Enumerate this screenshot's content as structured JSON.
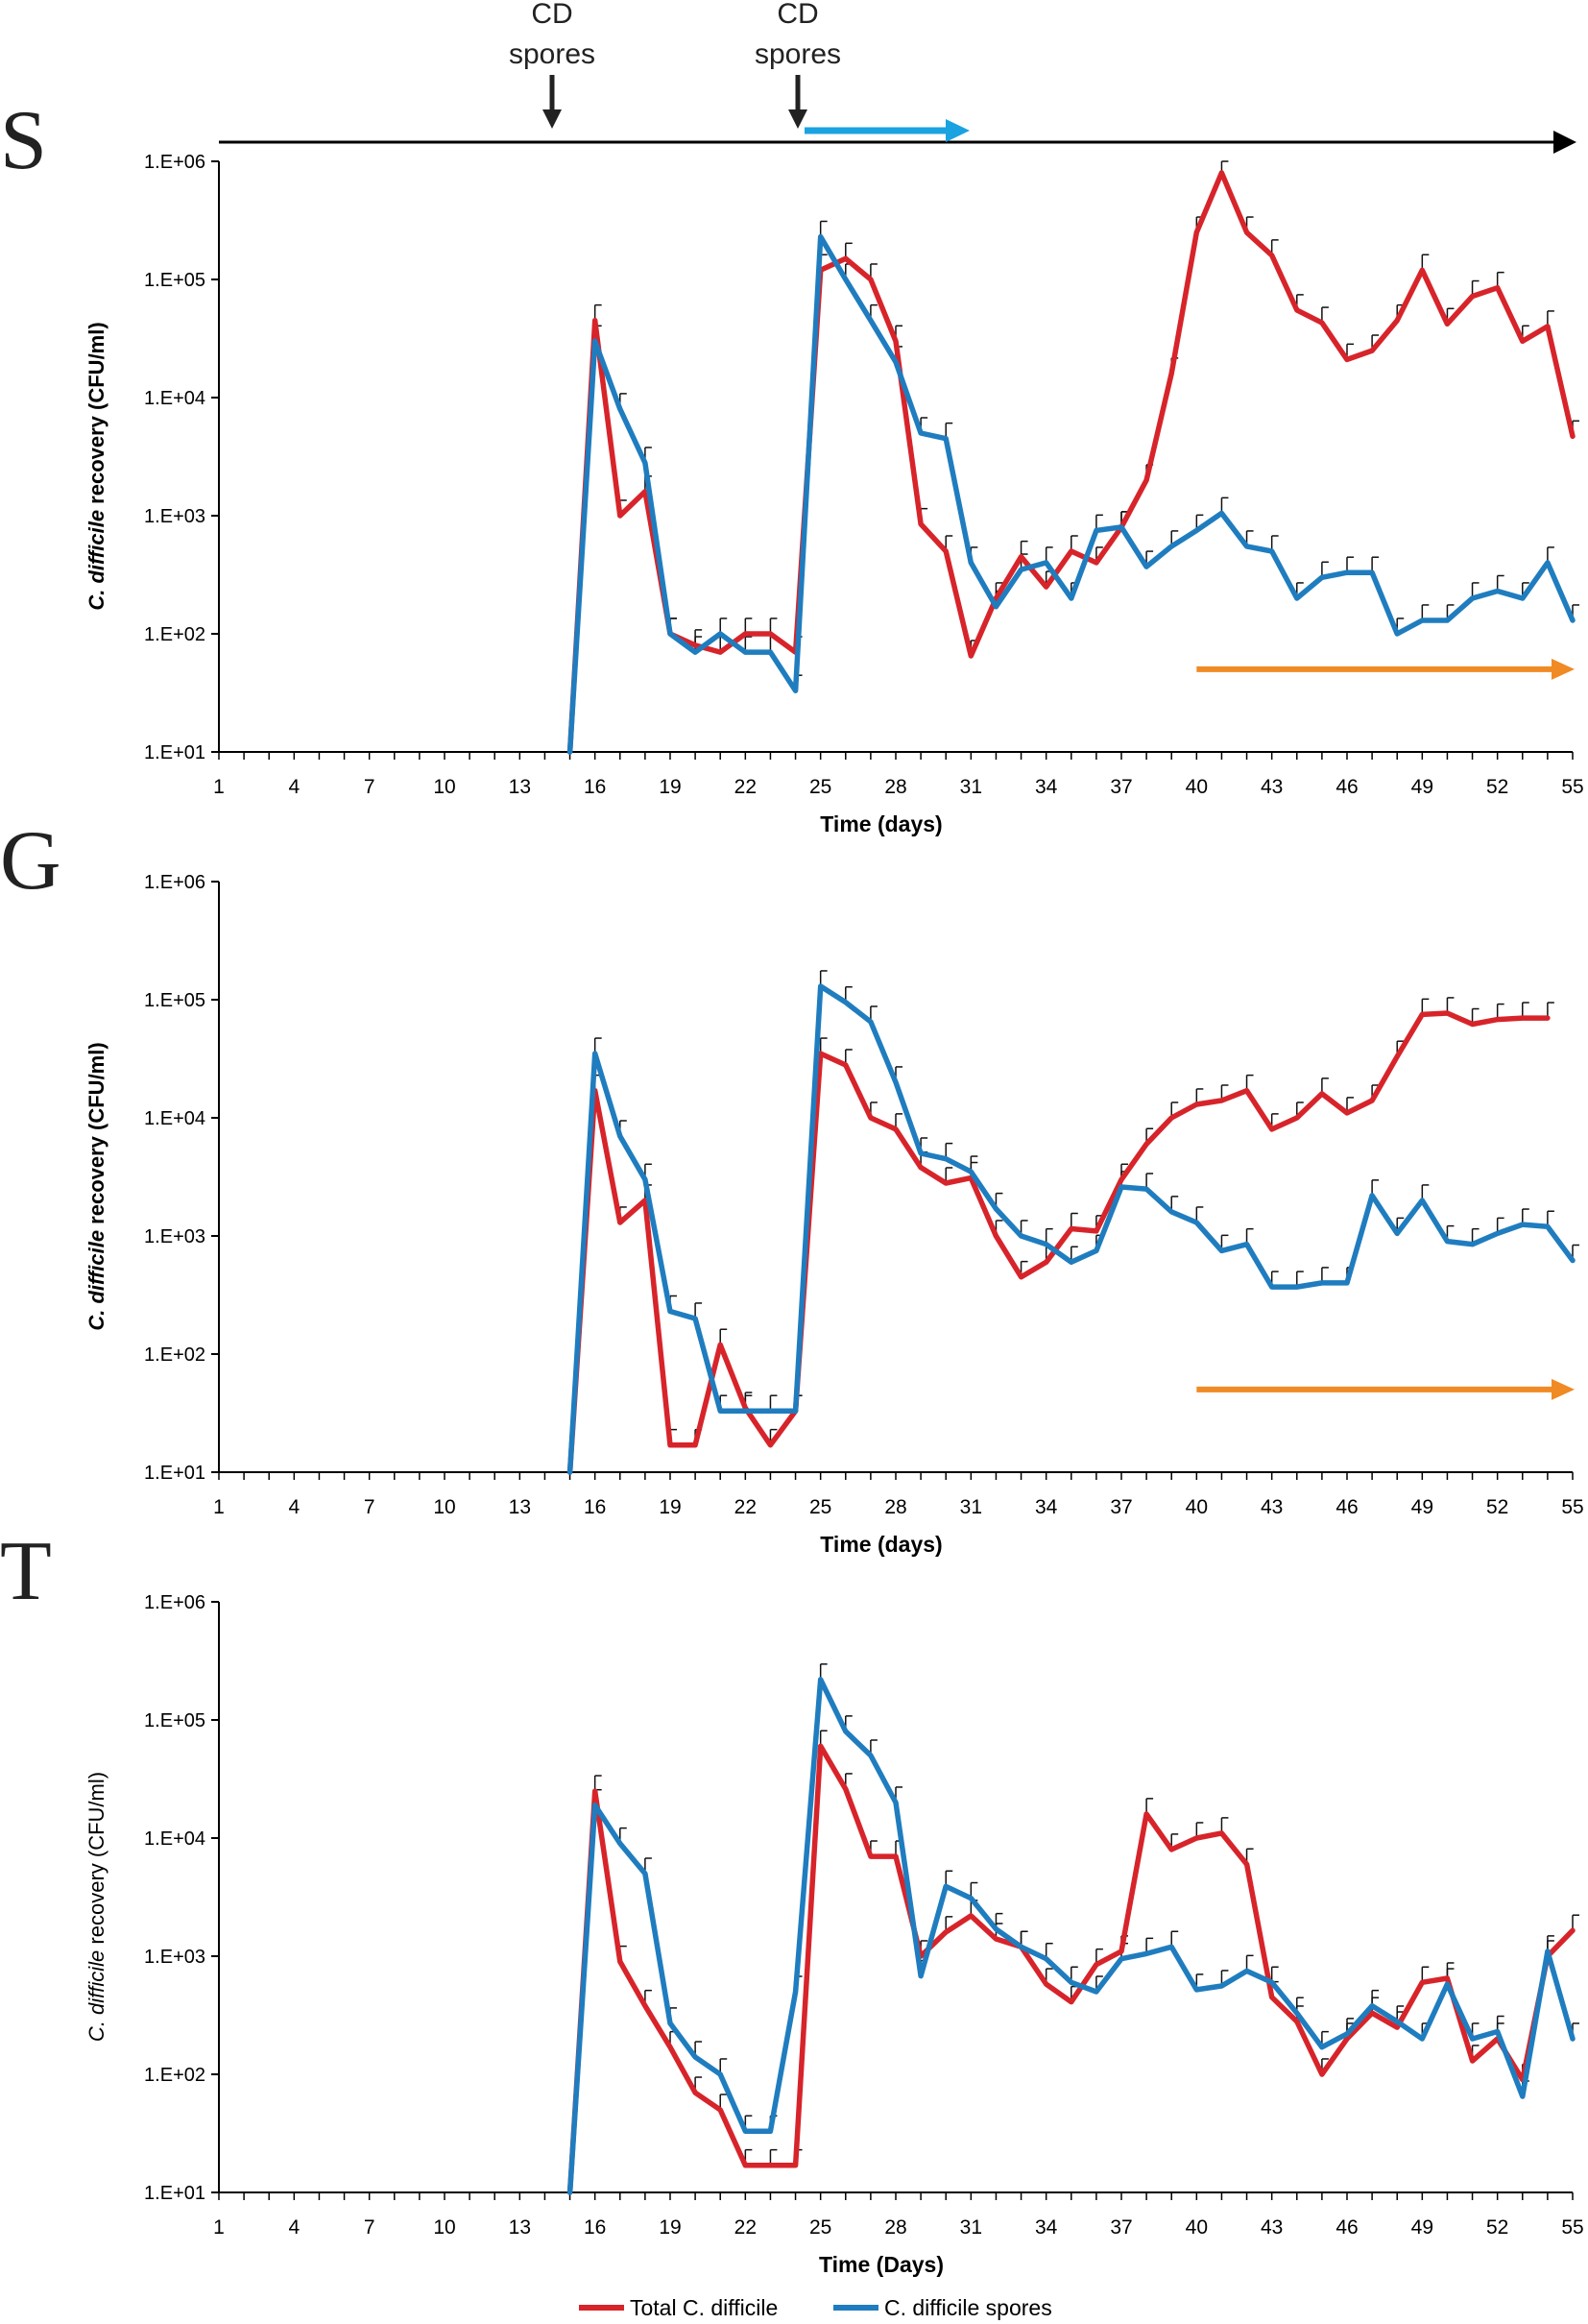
{
  "figure": {
    "colors": {
      "total": "#d7242a",
      "spores": "#1f7dbf",
      "timeline": "#000000",
      "spore_arrow": "#1aa3e0",
      "treatment_arrow": "#f08a24",
      "marker": "#222222"
    },
    "timeline": {
      "markers": [
        {
          "line1": "CD",
          "line2": "spores",
          "day": 15
        },
        {
          "line1": "CD",
          "line2": "spores",
          "day": 24
        }
      ],
      "spore_arrow_days": [
        24,
        31
      ]
    },
    "legend": [
      {
        "label": "Total C. difficile",
        "color": "#d7242a"
      },
      {
        "label": "C. difficile spores",
        "color": "#1f7dbf"
      }
    ]
  },
  "chart_data": [
    {
      "panel": "S",
      "type": "line",
      "y_scale": "log",
      "ylim": [
        10,
        1000000
      ],
      "xlim": [
        1,
        55
      ],
      "ytick_labels": [
        "1.E+01",
        "1.E+02",
        "1.E+03",
        "1.E+04",
        "1.E+05",
        "1.E+06"
      ],
      "xtick_labels": [
        "1",
        "4",
        "7",
        "10",
        "13",
        "16",
        "19",
        "22",
        "25",
        "28",
        "31",
        "34",
        "37",
        "40",
        "43",
        "46",
        "49",
        "52",
        "55"
      ],
      "xlabel": "Time (days)",
      "ylabel_italic": "C. difficile",
      "ylabel_rest": " recovery (CFU/ml)",
      "ylabel_bold": true,
      "treatment_arrow_days": [
        40,
        55
      ],
      "series": [
        {
          "name": "Total C. difficile",
          "x": [
            15,
            16,
            17,
            18,
            19,
            20,
            21,
            22,
            23,
            24,
            25,
            26,
            27,
            28,
            29,
            30,
            31,
            32,
            33,
            34,
            35,
            36,
            37,
            38,
            39,
            40,
            41,
            42,
            43,
            44,
            45,
            46,
            47,
            48,
            49,
            50,
            51,
            52,
            53,
            54,
            55
          ],
          "values": [
            10,
            45000,
            1000,
            1600,
            100,
            80,
            70,
            100,
            100,
            70,
            120000,
            150000,
            100000,
            30000,
            850,
            500,
            65,
            200,
            450,
            250,
            500,
            400,
            800,
            2000,
            16000,
            250000,
            800000,
            250000,
            160000,
            55000,
            43000,
            21000,
            25000,
            45000,
            120000,
            42000,
            72000,
            85000,
            30000,
            40000,
            4700
          ]
        },
        {
          "name": "C. difficile spores",
          "x": [
            15,
            16,
            17,
            18,
            19,
            20,
            21,
            22,
            23,
            24,
            25,
            26,
            27,
            28,
            29,
            30,
            31,
            32,
            33,
            34,
            35,
            36,
            37,
            38,
            39,
            40,
            41,
            42,
            43,
            44,
            45,
            46,
            47,
            48,
            49,
            50,
            51,
            52,
            53,
            54,
            55
          ],
          "values": [
            10,
            30000,
            8000,
            2800,
            100,
            70,
            100,
            70,
            70,
            33,
            230000,
            100000,
            45000,
            20000,
            5000,
            4500,
            400,
            170,
            350,
            400,
            200,
            750,
            800,
            370,
            550,
            750,
            1050,
            550,
            500,
            200,
            300,
            330,
            330,
            100,
            130,
            130,
            200,
            230,
            200,
            400,
            130
          ]
        }
      ]
    },
    {
      "panel": "G",
      "type": "line",
      "y_scale": "log",
      "ylim": [
        10,
        1000000
      ],
      "xlim": [
        1,
        55
      ],
      "ytick_labels": [
        "1.E+01",
        "1.E+02",
        "1.E+03",
        "1.E+04",
        "1.E+05",
        "1.E+06"
      ],
      "xtick_labels": [
        "1",
        "4",
        "7",
        "10",
        "13",
        "16",
        "19",
        "22",
        "25",
        "28",
        "31",
        "34",
        "37",
        "40",
        "43",
        "46",
        "49",
        "52",
        "55"
      ],
      "xlabel": "Time (days)",
      "ylabel_italic": "C. difficile",
      "ylabel_rest": " recovery (CFU/ml)",
      "ylabel_bold": true,
      "treatment_arrow_days": [
        40,
        55
      ],
      "series": [
        {
          "name": "Total C. difficile",
          "x": [
            15,
            16,
            17,
            18,
            19,
            20,
            21,
            22,
            23,
            24,
            25,
            26,
            27,
            28,
            29,
            30,
            31,
            32,
            33,
            34,
            35,
            36,
            37,
            38,
            39,
            40,
            41,
            42,
            43,
            44,
            45,
            46,
            47,
            48,
            49,
            50,
            51,
            52,
            53,
            54
          ],
          "values": [
            10,
            17000,
            1300,
            2000,
            17,
            17,
            120,
            35,
            17,
            33,
            35000,
            28000,
            10000,
            8000,
            3800,
            2800,
            3100,
            1000,
            450,
            600,
            1150,
            1100,
            3000,
            6000,
            10000,
            13000,
            14000,
            17000,
            8000,
            10000,
            16000,
            11000,
            14000,
            33000,
            75000,
            77000,
            62000,
            68000,
            70000,
            70000
          ]
        },
        {
          "name": "C. difficile spores",
          "x": [
            15,
            16,
            17,
            18,
            19,
            20,
            21,
            22,
            23,
            24,
            25,
            26,
            27,
            28,
            29,
            30,
            31,
            32,
            33,
            34,
            35,
            36,
            37,
            38,
            39,
            40,
            41,
            42,
            43,
            44,
            45,
            46,
            47,
            48,
            49,
            50,
            51,
            52,
            53,
            54,
            55
          ],
          "values": [
            10,
            35000,
            7000,
            3000,
            230,
            200,
            33,
            33,
            33,
            33,
            130000,
            95000,
            65000,
            20000,
            5000,
            4500,
            3500,
            1700,
            1000,
            850,
            600,
            750,
            2600,
            2500,
            1600,
            1300,
            750,
            850,
            370,
            370,
            400,
            400,
            2200,
            1050,
            2000,
            900,
            850,
            1050,
            1250,
            1200,
            620
          ]
        }
      ]
    },
    {
      "panel": "T",
      "type": "line",
      "y_scale": "log",
      "ylim": [
        10,
        1000000
      ],
      "xlim": [
        1,
        55
      ],
      "ytick_labels": [
        "1.E+01",
        "1.E+02",
        "1.E+03",
        "1.E+04",
        "1.E+05",
        "1.E+06"
      ],
      "xtick_labels": [
        "1",
        "4",
        "7",
        "10",
        "13",
        "16",
        "19",
        "22",
        "25",
        "28",
        "31",
        "34",
        "37",
        "40",
        "43",
        "46",
        "49",
        "52",
        "55"
      ],
      "xlabel": "Time (Days)",
      "ylabel_italic": "C. difficile",
      "ylabel_rest": " recovery (CFU/ml)",
      "ylabel_bold": false,
      "treatment_arrow_days": null,
      "series": [
        {
          "name": "Total C. difficile",
          "x": [
            15,
            16,
            17,
            18,
            19,
            20,
            21,
            22,
            23,
            24,
            25,
            26,
            27,
            28,
            29,
            30,
            31,
            32,
            33,
            34,
            35,
            36,
            37,
            38,
            39,
            40,
            41,
            42,
            43,
            44,
            45,
            46,
            47,
            48,
            49,
            50,
            51,
            52,
            53,
            54,
            55
          ],
          "values": [
            10,
            25000,
            900,
            380,
            170,
            70,
            50,
            17,
            17,
            17,
            60000,
            26000,
            7000,
            7000,
            1000,
            1600,
            2200,
            1400,
            1200,
            580,
            410,
            850,
            1100,
            16000,
            8000,
            10000,
            11000,
            6000,
            450,
            280,
            100,
            200,
            330,
            250,
            600,
            650,
            130,
            200,
            90,
            1000,
            1650
          ]
        },
        {
          "name": "C. difficile spores",
          "x": [
            15,
            16,
            17,
            18,
            19,
            20,
            21,
            22,
            23,
            24,
            25,
            26,
            27,
            28,
            29,
            30,
            31,
            32,
            33,
            34,
            35,
            36,
            37,
            38,
            39,
            40,
            41,
            42,
            43,
            44,
            45,
            46,
            47,
            48,
            49,
            50,
            51,
            52,
            53,
            54,
            55
          ],
          "values": [
            10,
            19000,
            9000,
            5000,
            270,
            140,
            100,
            33,
            33,
            500,
            220000,
            80000,
            50000,
            20000,
            680,
            3900,
            3100,
            1700,
            1200,
            950,
            600,
            500,
            950,
            1050,
            1200,
            520,
            560,
            750,
            600,
            330,
            170,
            220,
            380,
            280,
            200,
            580,
            200,
            230,
            65,
            1100,
            200
          ]
        }
      ]
    }
  ]
}
